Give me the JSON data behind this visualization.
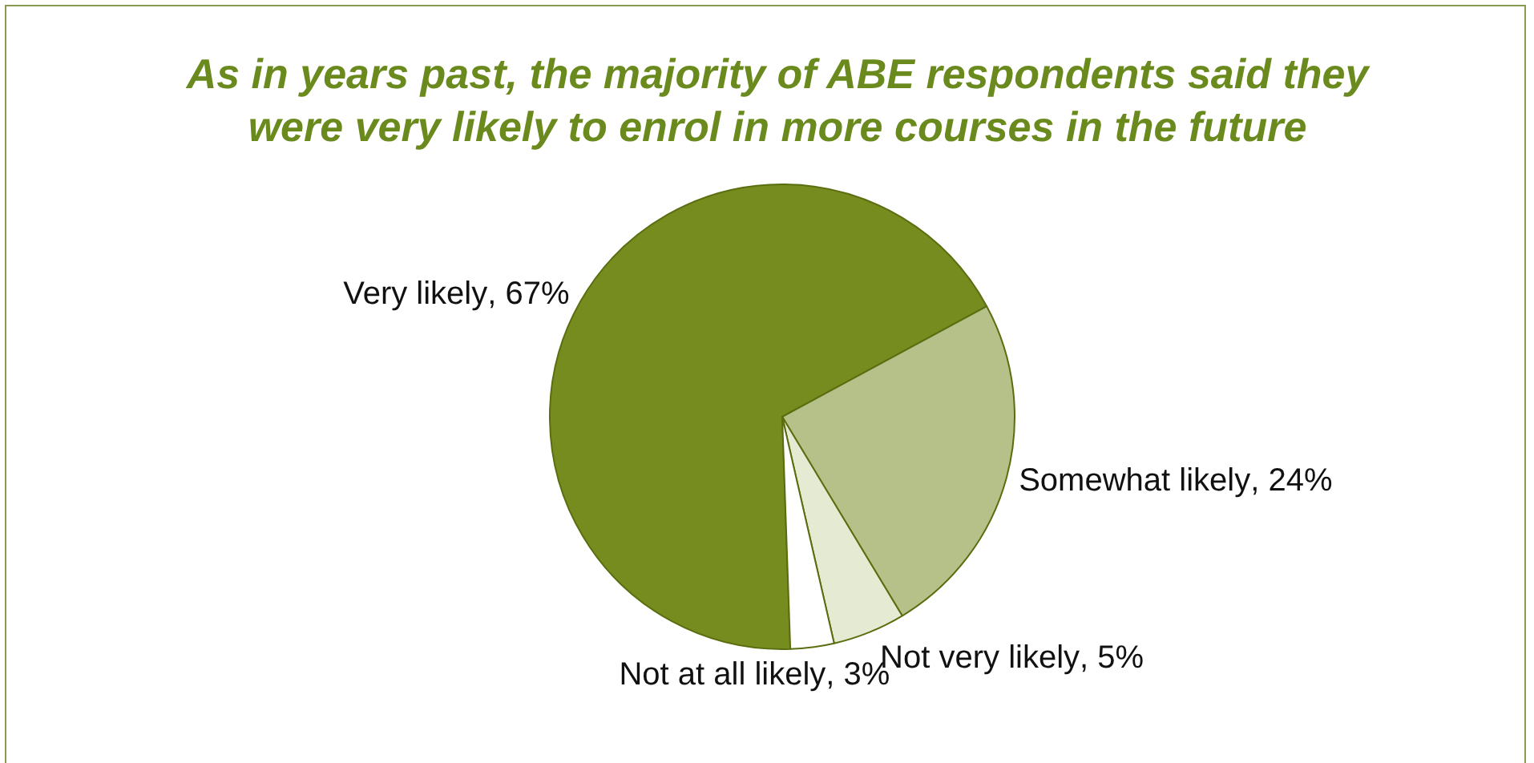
{
  "chart_data": {
    "type": "pie",
    "title": "As in years past, the majority of ABE respondents said they were very likely to enrol in more courses in the future",
    "categories": [
      "Very likely",
      "Somewhat likely",
      "Not very likely",
      "Not at all likely"
    ],
    "values": [
      67,
      24,
      5,
      3
    ],
    "value_labels": [
      ", 67%",
      ", 24%",
      ", 5%",
      ", 3%"
    ],
    "colors": [
      "#778c1e",
      "#b5c189",
      "#e5ead3",
      "#ffffff"
    ],
    "legend": false
  }
}
